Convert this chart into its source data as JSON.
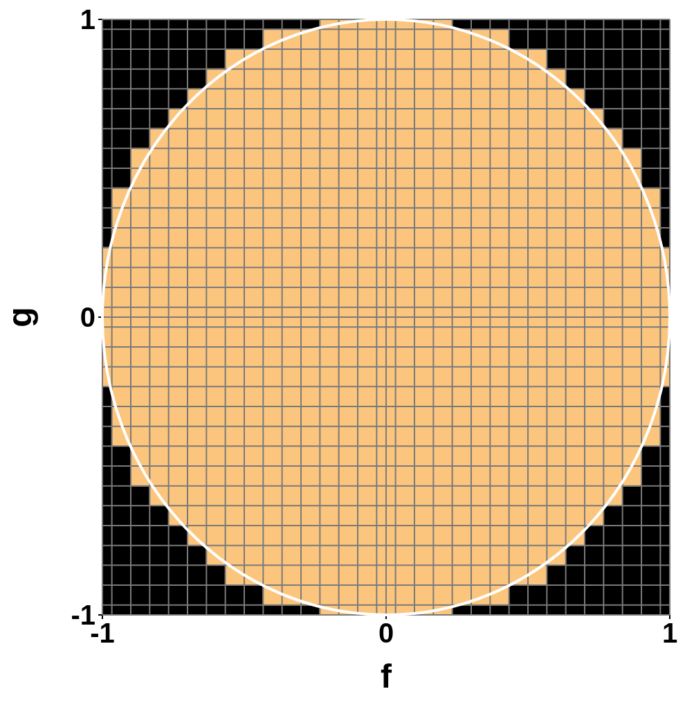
{
  "chart_data": {
    "type": "bar",
    "xlabel": "f",
    "ylabel": "g",
    "xlim": [
      -1,
      1
    ],
    "ylim": [
      -1,
      1
    ],
    "grid": true,
    "xticks": [
      -1,
      {
        "value": -0.9667,
        "label": null
      },
      {
        "value": -0.9,
        "label": null
      },
      {
        "value": -0.8333,
        "label": null
      },
      {
        "value": -0.7667,
        "label": null
      },
      {
        "value": -0.7,
        "label": null
      },
      {
        "value": -0.6333,
        "label": null
      },
      {
        "value": -0.5667,
        "label": null
      },
      {
        "value": -0.5,
        "label": null
      },
      {
        "value": -0.4333,
        "label": null
      },
      {
        "value": -0.3667,
        "label": null
      },
      {
        "value": -0.3,
        "label": null
      },
      {
        "value": -0.2333,
        "label": null
      },
      {
        "value": -0.1667,
        "label": null
      },
      {
        "value": -0.1,
        "label": null
      },
      {
        "value": -0.0333,
        "label": null
      },
      0,
      {
        "value": 0.0333,
        "label": null
      },
      {
        "value": 0.1,
        "label": null
      },
      {
        "value": 0.1667,
        "label": null
      },
      {
        "value": 0.2333,
        "label": null
      },
      {
        "value": 0.3,
        "label": null
      },
      {
        "value": 0.3667,
        "label": null
      },
      {
        "value": 0.4333,
        "label": null
      },
      {
        "value": 0.5,
        "label": null
      },
      {
        "value": 0.5667,
        "label": null
      },
      {
        "value": 0.6333,
        "label": null
      },
      {
        "value": 0.7,
        "label": null
      },
      {
        "value": 0.7667,
        "label": null
      },
      {
        "value": 0.8333,
        "label": null
      },
      {
        "value": 0.9,
        "label": null
      },
      {
        "value": 0.9667,
        "label": null
      },
      1
    ],
    "yticks": [
      -1,
      {
        "value": -0.9667,
        "label": null
      },
      {
        "value": -0.9,
        "label": null
      },
      {
        "value": -0.8333,
        "label": null
      },
      {
        "value": -0.7667,
        "label": null
      },
      {
        "value": -0.7,
        "label": null
      },
      {
        "value": -0.6333,
        "label": null
      },
      {
        "value": -0.5667,
        "label": null
      },
      {
        "value": -0.5,
        "label": null
      },
      {
        "value": -0.4333,
        "label": null
      },
      {
        "value": -0.3667,
        "label": null
      },
      {
        "value": -0.3,
        "label": null
      },
      {
        "value": -0.2333,
        "label": null
      },
      {
        "value": -0.1667,
        "label": null
      },
      {
        "value": -0.1,
        "label": null
      },
      {
        "value": -0.0333,
        "label": null
      },
      0,
      {
        "value": 0.0333,
        "label": null
      },
      {
        "value": 0.1,
        "label": null
      },
      {
        "value": 0.1667,
        "label": null
      },
      {
        "value": 0.2333,
        "label": null
      },
      {
        "value": 0.3,
        "label": null
      },
      {
        "value": 0.3667,
        "label": null
      },
      {
        "value": 0.4333,
        "label": null
      },
      {
        "value": 0.5,
        "label": null
      },
      {
        "value": 0.5667,
        "label": null
      },
      {
        "value": 0.6333,
        "label": null
      },
      {
        "value": 0.7,
        "label": null
      },
      {
        "value": 0.7667,
        "label": null
      },
      {
        "value": 0.8333,
        "label": null
      },
      {
        "value": 0.9,
        "label": null
      },
      {
        "value": 0.9667,
        "label": null
      },
      1
    ],
    "series": [
      {
        "color": "#fcc57d",
        "x": [
          -1,
          -0.9333,
          -0.8667,
          -0.8,
          -0.7333,
          -0.6667,
          -0.6,
          -0.5333,
          -0.4667,
          -0.4,
          -0.3333,
          -0.2667,
          -0.2,
          -0.1333,
          -0.0667,
          0,
          0.0667,
          0.1333,
          0.2,
          0.2667,
          0.3333,
          0.4,
          0.4667,
          0.5333,
          0.6,
          0.6667,
          0.7333,
          0.8,
          0.8667,
          0.9333,
          1
        ],
        "base": [
          -0.233,
          -0.433,
          -0.567,
          -0.633,
          -0.7,
          -0.767,
          -0.833,
          -0.9,
          -0.9,
          -0.967,
          -0.967,
          -0.967,
          -1,
          -1,
          -1,
          -1,
          -1,
          -1,
          -1,
          -0.967,
          -0.967,
          -0.967,
          -0.9,
          -0.9,
          -0.833,
          -0.767,
          -0.7,
          -0.633,
          -0.567,
          -0.433,
          -0.233
        ],
        "values": [
          0.467,
          0.867,
          1.133,
          1.267,
          1.4,
          1.533,
          1.667,
          1.8,
          1.8,
          1.933,
          1.933,
          1.933,
          2,
          2,
          2,
          2,
          2,
          2,
          2,
          1.933,
          1.933,
          1.933,
          1.8,
          1.8,
          1.667,
          1.533,
          1.4,
          1.267,
          1.133,
          0.867,
          0.467
        ]
      }
    ]
  }
}
